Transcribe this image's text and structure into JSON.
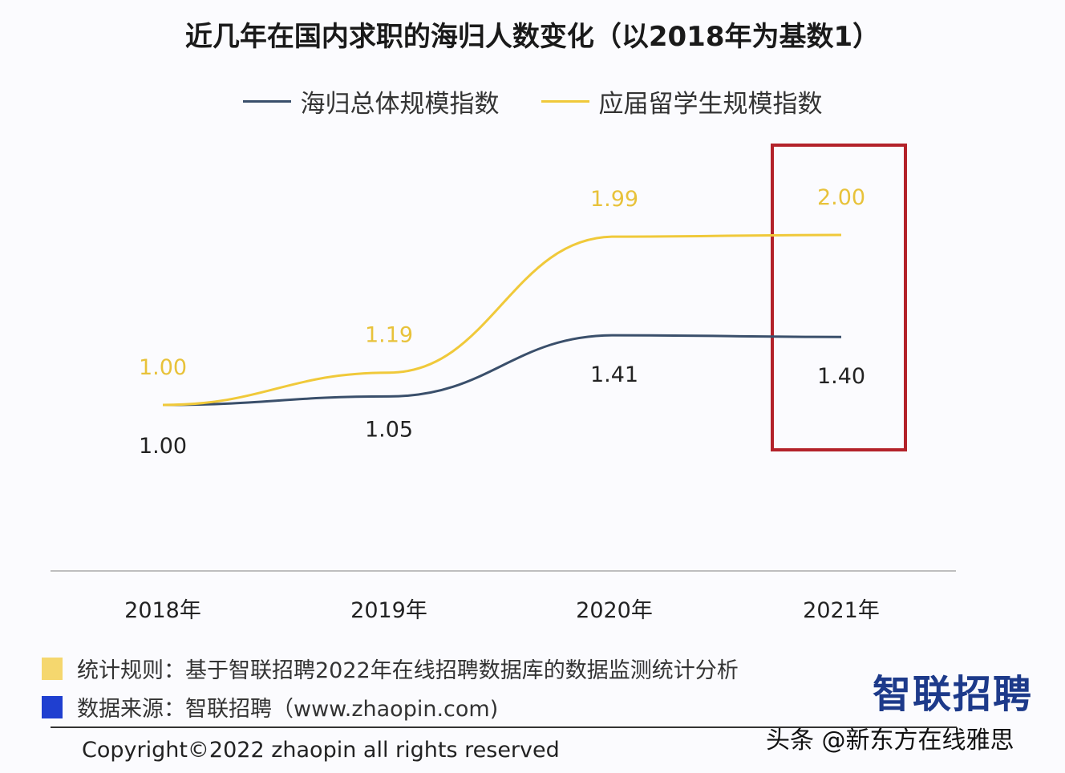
{
  "chart_data": {
    "type": "line",
    "title": "近几年在国内求职的海归人数变化（以2018年为基数1）",
    "categories": [
      "2018年",
      "2019年",
      "2020年",
      "2021年"
    ],
    "series": [
      {
        "name": "海归总体规模指数",
        "color": "#3a4f6b",
        "values": [
          1.0,
          1.05,
          1.41,
          1.4
        ],
        "labels": [
          "1.00",
          "1.05",
          "1.41",
          "1.40"
        ]
      },
      {
        "name": "应届留学生规模指数",
        "color": "#f0c93a",
        "values": [
          1.0,
          1.19,
          1.99,
          2.0
        ],
        "labels": [
          "1.00",
          "1.19",
          "1.99",
          "2.00"
        ]
      }
    ],
    "highlight": {
      "category": "2021年",
      "color": "#b3222a"
    },
    "grid": false,
    "legend": "top"
  },
  "notes": [
    {
      "text": "统计规则：基于智联招聘2022年在线招聘数据库的数据监测统计分析",
      "color": "#f5d76e"
    },
    {
      "text": "数据来源：智联招聘（www.zhaopin.com)",
      "color": "#1f3fd0"
    }
  ],
  "copyright": "Copyright©2022 zhaopin all rights reserved",
  "logo": "智联招聘",
  "watermark": "头条 @新东方在线雅思"
}
